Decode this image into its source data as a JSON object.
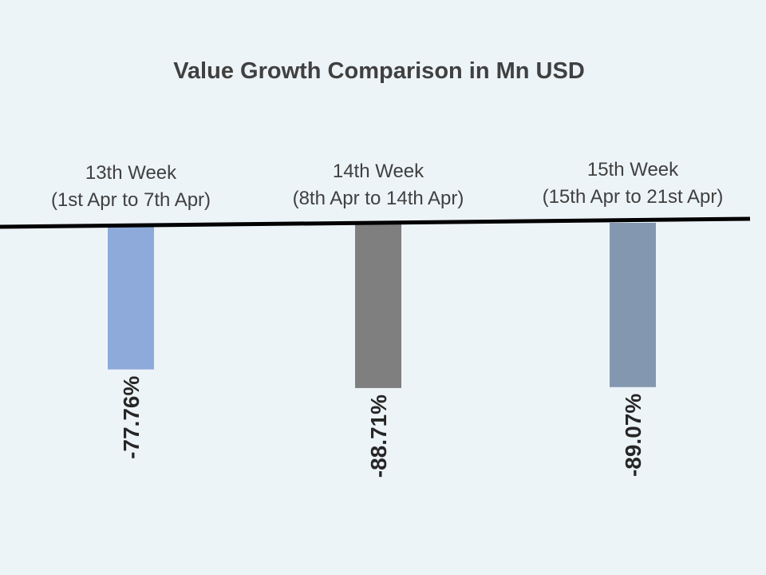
{
  "chart_data": {
    "type": "bar",
    "title": "Value Growth Comparison  in Mn USD",
    "xlabel": "",
    "ylabel": "",
    "categories": [
      {
        "line1": "13th Week",
        "line2": "(1st Apr to  7th Apr)"
      },
      {
        "line1": "14th Week",
        "line2": "(8th Apr to 14th Apr)"
      },
      {
        "line1": "15th Week",
        "line2": "(15th Apr to 21st Apr)"
      }
    ],
    "values": [
      -77.76,
      -88.71,
      -89.07
    ],
    "value_labels": [
      "-77.76%",
      "-88.71%",
      "-89.07%"
    ],
    "colors": [
      "#8eaadb",
      "#7f7f7f",
      "#8497b0"
    ],
    "ylim": [
      -100,
      0
    ],
    "grid": false,
    "legend": "none"
  }
}
